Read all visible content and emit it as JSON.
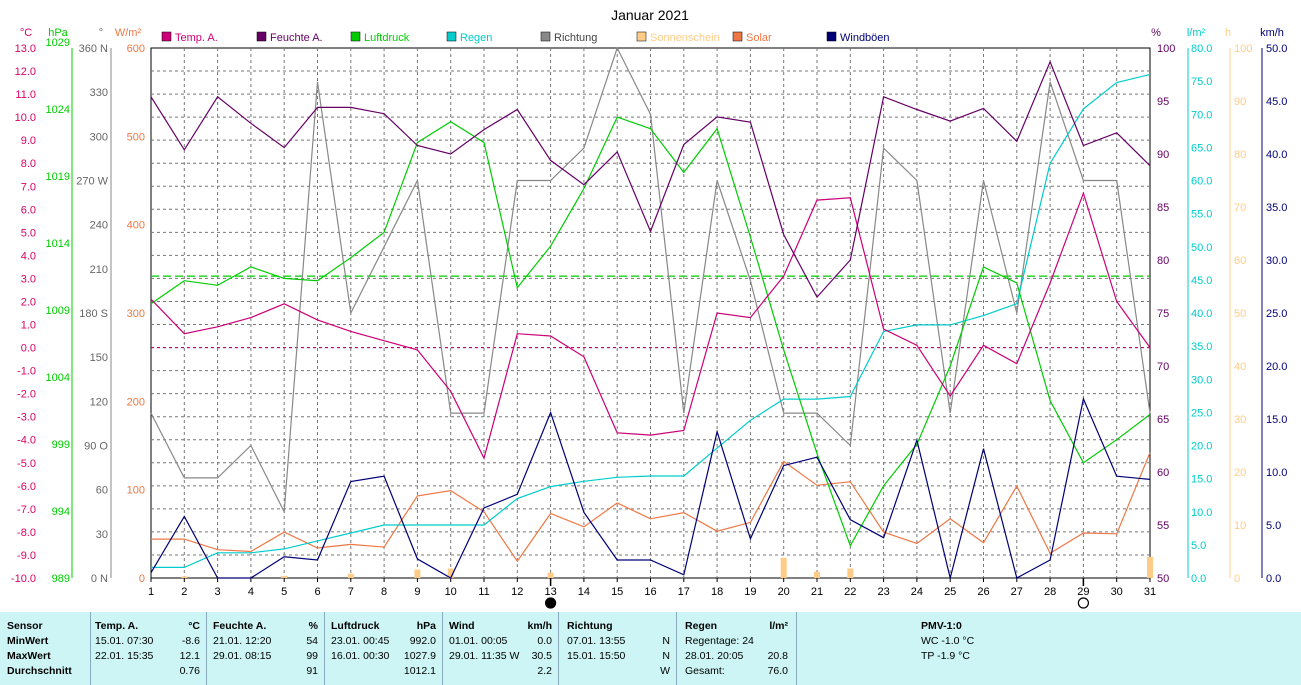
{
  "chart_data": {
    "type": "line",
    "title": "Januar 2021",
    "x": [
      1,
      2,
      3,
      4,
      5,
      6,
      7,
      8,
      9,
      10,
      11,
      12,
      13,
      14,
      15,
      16,
      17,
      18,
      19,
      20,
      21,
      22,
      23,
      24,
      25,
      26,
      27,
      28,
      29,
      30,
      31
    ],
    "x_ticks": [
      "1",
      "2",
      "3",
      "4",
      "5",
      "6",
      "7",
      "8",
      "9",
      "10",
      "11",
      "12",
      "13",
      "14",
      "15",
      "16",
      "17",
      "18",
      "19",
      "20",
      "21",
      "22",
      "23",
      "24",
      "25",
      "26",
      "27",
      "28",
      "29",
      "30",
      "31"
    ],
    "axes": {
      "temp": {
        "unit": "°C",
        "ylim": [
          -10,
          13
        ],
        "ticks": [
          "-10.0",
          "-9.0",
          "-8.0",
          "-7.0",
          "-6.0",
          "-5.0",
          "-4.0",
          "-3.0",
          "-2.0",
          "-1.0",
          "0.0",
          "1.0",
          "2.0",
          "3.0",
          "4.0",
          "5.0",
          "6.0",
          "7.0",
          "8.0",
          "9.0",
          "10.0",
          "11.0",
          "12.0",
          "13.0"
        ]
      },
      "pressure": {
        "unit": "hPa",
        "ticks": [
          "989",
          "994",
          "999",
          "1004",
          "1009",
          "1014",
          "1019",
          "1024",
          "1029"
        ]
      },
      "direction": {
        "unit": "°",
        "ylim": [
          0,
          360
        ],
        "ticks": [
          "0 N",
          "30",
          "60",
          "90 O",
          "120",
          "150",
          "180 S",
          "210",
          "240",
          "270 W",
          "300",
          "330",
          "360 N"
        ]
      },
      "solar": {
        "unit": "W/m²",
        "ylim": [
          0,
          600
        ],
        "ticks": [
          "0",
          "100",
          "200",
          "300",
          "400",
          "500",
          "600"
        ]
      },
      "humidity": {
        "unit": "%",
        "ylim": [
          50,
          100
        ],
        "ticks": [
          "50",
          "55",
          "60",
          "65",
          "70",
          "75",
          "80",
          "85",
          "90",
          "95",
          "100"
        ]
      },
      "rain": {
        "unit": "l/m²",
        "ylim": [
          0,
          80
        ],
        "ticks": [
          "0.0",
          "5.0",
          "10.0",
          "15.0",
          "20.0",
          "25.0",
          "30.0",
          "35.0",
          "40.0",
          "45.0",
          "50.0",
          "55.0",
          "60.0",
          "65.0",
          "70.0",
          "75.0",
          "80.0"
        ]
      },
      "sun": {
        "unit": "h",
        "ylim": [
          0,
          100
        ],
        "ticks": [
          "0",
          "10",
          "20",
          "30",
          "40",
          "50",
          "60",
          "70",
          "80",
          "90",
          "100"
        ]
      },
      "wind": {
        "unit": "km/h",
        "ylim": [
          0,
          50
        ],
        "ticks": [
          "0.0",
          "5.0",
          "10.0",
          "15.0",
          "20.0",
          "25.0",
          "30.0",
          "35.0",
          "40.0",
          "45.0",
          "50.0"
        ]
      }
    },
    "series": [
      {
        "name": "Temp. A.",
        "axis": "temp",
        "color": "#cc0077",
        "values": [
          2.1,
          0.6,
          0.9,
          1.3,
          1.9,
          1.2,
          0.7,
          0.3,
          -0.1,
          -1.9,
          -4.8,
          0.6,
          0.5,
          -0.4,
          -3.7,
          -3.8,
          -3.6,
          1.5,
          1.3,
          3.1,
          6.4,
          6.5,
          0.8,
          0.1,
          -2.1,
          0.1,
          -0.7,
          2.8,
          6.7,
          2.0,
          0.0
        ]
      },
      {
        "name": "Feuchte A.",
        "axis": "humidity",
        "color": "#660066",
        "values": [
          95.4,
          90.4,
          95.4,
          92.9,
          90.6,
          94.4,
          94.4,
          93.8,
          90.8,
          90.0,
          92.3,
          94.2,
          89.4,
          87.1,
          90.2,
          82.7,
          90.9,
          93.5,
          93.0,
          82.4,
          76.5,
          80.0,
          95.4,
          94.2,
          93.1,
          94.3,
          91.2,
          98.7,
          90.8,
          92.0,
          88.9
        ]
      },
      {
        "name": "Luftdruck",
        "axis": "temp",
        "color": "#00cc00",
        "values": [
          1.9,
          2.9,
          2.7,
          3.5,
          3.0,
          2.9,
          3.9,
          5.0,
          8.9,
          9.8,
          8.9,
          2.6,
          4.4,
          6.9,
          10.0,
          9.5,
          7.6,
          9.5,
          4.8,
          -0.1,
          -4.6,
          -8.6,
          -6.0,
          -4.2,
          -0.8,
          3.5,
          2.8,
          -2.3,
          -5.0,
          -4.0,
          -2.9
        ]
      },
      {
        "name": "Regen",
        "axis": "rain",
        "color": "#00cccc",
        "values": [
          1.6,
          1.6,
          3.8,
          3.8,
          4.4,
          5.6,
          6.8,
          8.0,
          8.0,
          8.0,
          8.0,
          12.0,
          13.8,
          14.6,
          15.2,
          15.4,
          15.4,
          19.6,
          23.8,
          27.0,
          27.0,
          27.4,
          37.2,
          38.2,
          38.2,
          39.6,
          41.4,
          62.6,
          70.8,
          74.8,
          76.0
        ]
      },
      {
        "name": "Richtung",
        "axis": "direction",
        "color": "#888888",
        "values": [
          112,
          68,
          68,
          90,
          45,
          337,
          180,
          225,
          270,
          112,
          112,
          270,
          270,
          292,
          360,
          315,
          112,
          270,
          202,
          112,
          112,
          90,
          292,
          270,
          112,
          270,
          180,
          337,
          270,
          270,
          112
        ]
      },
      {
        "name": "Sonnenschein",
        "axis": "sun",
        "color": "#ffcc88",
        "values": [
          0.0,
          0.3,
          0.0,
          0.0,
          0.4,
          0.0,
          0.8,
          0.0,
          1.6,
          1.8,
          0.0,
          0.0,
          1.0,
          0.0,
          0.0,
          0.0,
          0.0,
          0.0,
          0.0,
          3.8,
          1.2,
          1.8,
          0.0,
          0.0,
          0.0,
          0.0,
          0.0,
          0.0,
          0.0,
          0.0,
          4.0
        ]
      },
      {
        "name": "Solar",
        "axis": "solar",
        "color": "#ee7744",
        "values": [
          44,
          44,
          32,
          30,
          52,
          34,
          38,
          35,
          93,
          99,
          75,
          19,
          73,
          58,
          85,
          67,
          74,
          53,
          63,
          132,
          105,
          109,
          52,
          39,
          67,
          40,
          104,
          28,
          51,
          50,
          142
        ]
      },
      {
        "name": "Windböen",
        "axis": "wind",
        "color": "#000077",
        "values": [
          0.5,
          5.8,
          0.0,
          0.0,
          2.0,
          1.7,
          9.1,
          9.6,
          1.8,
          0.0,
          6.6,
          7.9,
          15.6,
          6.2,
          1.7,
          1.7,
          0.3,
          13.8,
          3.7,
          10.6,
          11.4,
          5.5,
          3.8,
          13.0,
          0.0,
          12.2,
          0.0,
          1.7,
          16.9,
          9.6,
          9.3
        ]
      }
    ],
    "ref_lines": [
      {
        "axis": "temp",
        "value": 0,
        "color": "#cc0077"
      },
      {
        "axis": "temp",
        "value": 3.1,
        "color": "#00cc00"
      }
    ],
    "moon_markers": [
      {
        "day": 13,
        "phase": "new"
      },
      {
        "day": 29,
        "phase": "full"
      }
    ],
    "grid": true,
    "legend_placement": "top"
  },
  "stats": {
    "sensor": {
      "header": "Sensor",
      "rows": [
        "MinWert",
        "MaxWert",
        "Durchschnitt"
      ]
    },
    "temp": {
      "header": "Temp. A.",
      "unit": "°C",
      "rows": [
        [
          "15.01.  07:30",
          "-8.6"
        ],
        [
          "22.01.  15:35",
          "12.1"
        ],
        [
          "",
          "0.76"
        ]
      ]
    },
    "humidity": {
      "header": "Feuchte A.",
      "unit": "%",
      "rows": [
        [
          "21.01.  12:20",
          "54"
        ],
        [
          "29.01.  08:15",
          "99"
        ],
        [
          "",
          "91"
        ]
      ]
    },
    "pressure": {
      "header": "Luftdruck",
      "unit": "hPa",
      "rows": [
        [
          "23.01.  00:45",
          "992.0"
        ],
        [
          "16.01.  00:30",
          "1027.9"
        ],
        [
          "",
          "1012.1"
        ]
      ]
    },
    "wind": {
      "header": "Wind",
      "unit": "km/h",
      "rows": [
        [
          "01.01.  00:05",
          "0.0"
        ],
        [
          "29.01.  11:35  W",
          "30.5"
        ],
        [
          "",
          "2.2"
        ]
      ]
    },
    "direction": {
      "header": "Richtung",
      "rows": [
        [
          "07.01.  13:55",
          "N"
        ],
        [
          "15.01.  15:50",
          "N"
        ],
        [
          "",
          "W"
        ]
      ]
    },
    "rain": {
      "header": "Regen",
      "unit": "l/m²",
      "rows": [
        [
          "Regentage: 24",
          ""
        ],
        [
          "28.01.  20:05",
          "20.8"
        ],
        [
          "Gesamt:",
          "76.0"
        ]
      ]
    },
    "pmv": {
      "header": "PMV-1:0",
      "rows": [
        "WC -1.0 °C",
        "TP -1.9 °C"
      ]
    }
  }
}
